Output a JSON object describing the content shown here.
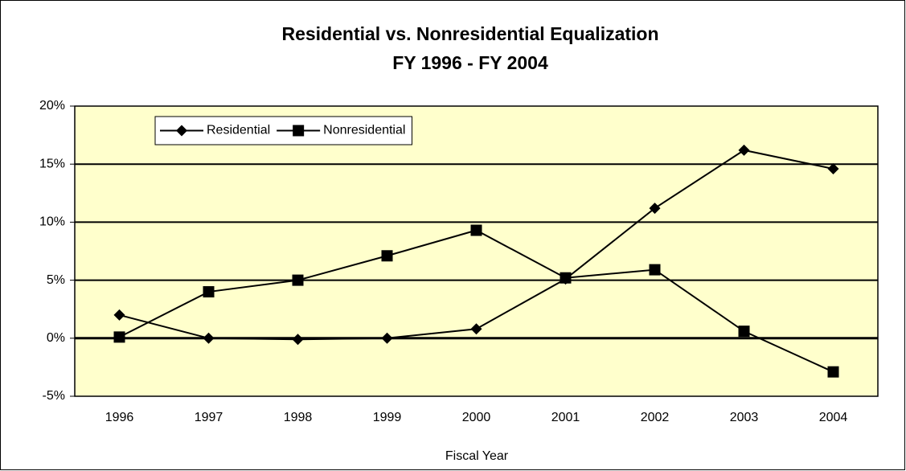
{
  "chart_data": {
    "type": "line",
    "title": "Residential vs. Nonresidential Equalization",
    "subtitle": "FY 1996 - FY 2004",
    "x_label": "Fiscal Year",
    "categories": [
      "1996",
      "1997",
      "1998",
      "1999",
      "2000",
      "2001",
      "2002",
      "2003",
      "2004"
    ],
    "series": [
      {
        "name": "Residential",
        "color": "#000000",
        "marker": "diamond",
        "values": [
          2.0,
          0.0,
          -0.1,
          0.0,
          0.8,
          5.1,
          11.2,
          16.2,
          14.6
        ]
      },
      {
        "name": "Nonresidential",
        "color": "#000000",
        "marker": "square",
        "values": [
          0.1,
          4.0,
          5.0,
          7.1,
          9.3,
          5.2,
          5.9,
          0.6,
          -2.9
        ]
      }
    ],
    "ylim": [
      -5,
      20
    ],
    "yticks": [
      {
        "value": -5,
        "label": "-5%"
      },
      {
        "value": 0,
        "label": "0%"
      },
      {
        "value": 5,
        "label": "5%"
      },
      {
        "value": 10,
        "label": "10%"
      },
      {
        "value": 15,
        "label": "15%"
      },
      {
        "value": 20,
        "label": "20%"
      }
    ],
    "grid": true,
    "legend": "top-left",
    "plot_background": "#FFFFCC"
  }
}
